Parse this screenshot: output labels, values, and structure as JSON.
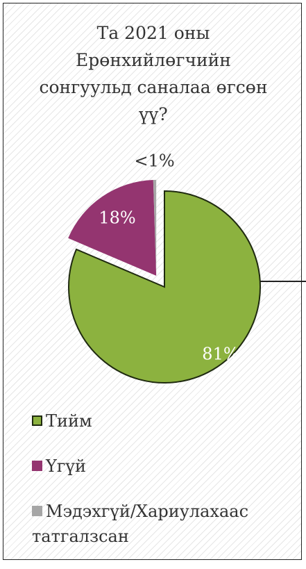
{
  "chart_data": {
    "type": "pie",
    "title": "Та 2021 оны Ерөнхийлөгчийн сонгуульд саналаа өгсөн үү?",
    "categories": [
      "Тийм",
      "Үгүй",
      "Мэдэхгүй/Хариулахаас татгалзсан"
    ],
    "values": [
      81,
      18,
      0.5
    ],
    "value_labels": [
      "81%",
      "18%",
      "<1%"
    ],
    "colors": [
      "#8cb23f",
      "#943570",
      "#a6a6a6"
    ],
    "legend": "bottom"
  }
}
